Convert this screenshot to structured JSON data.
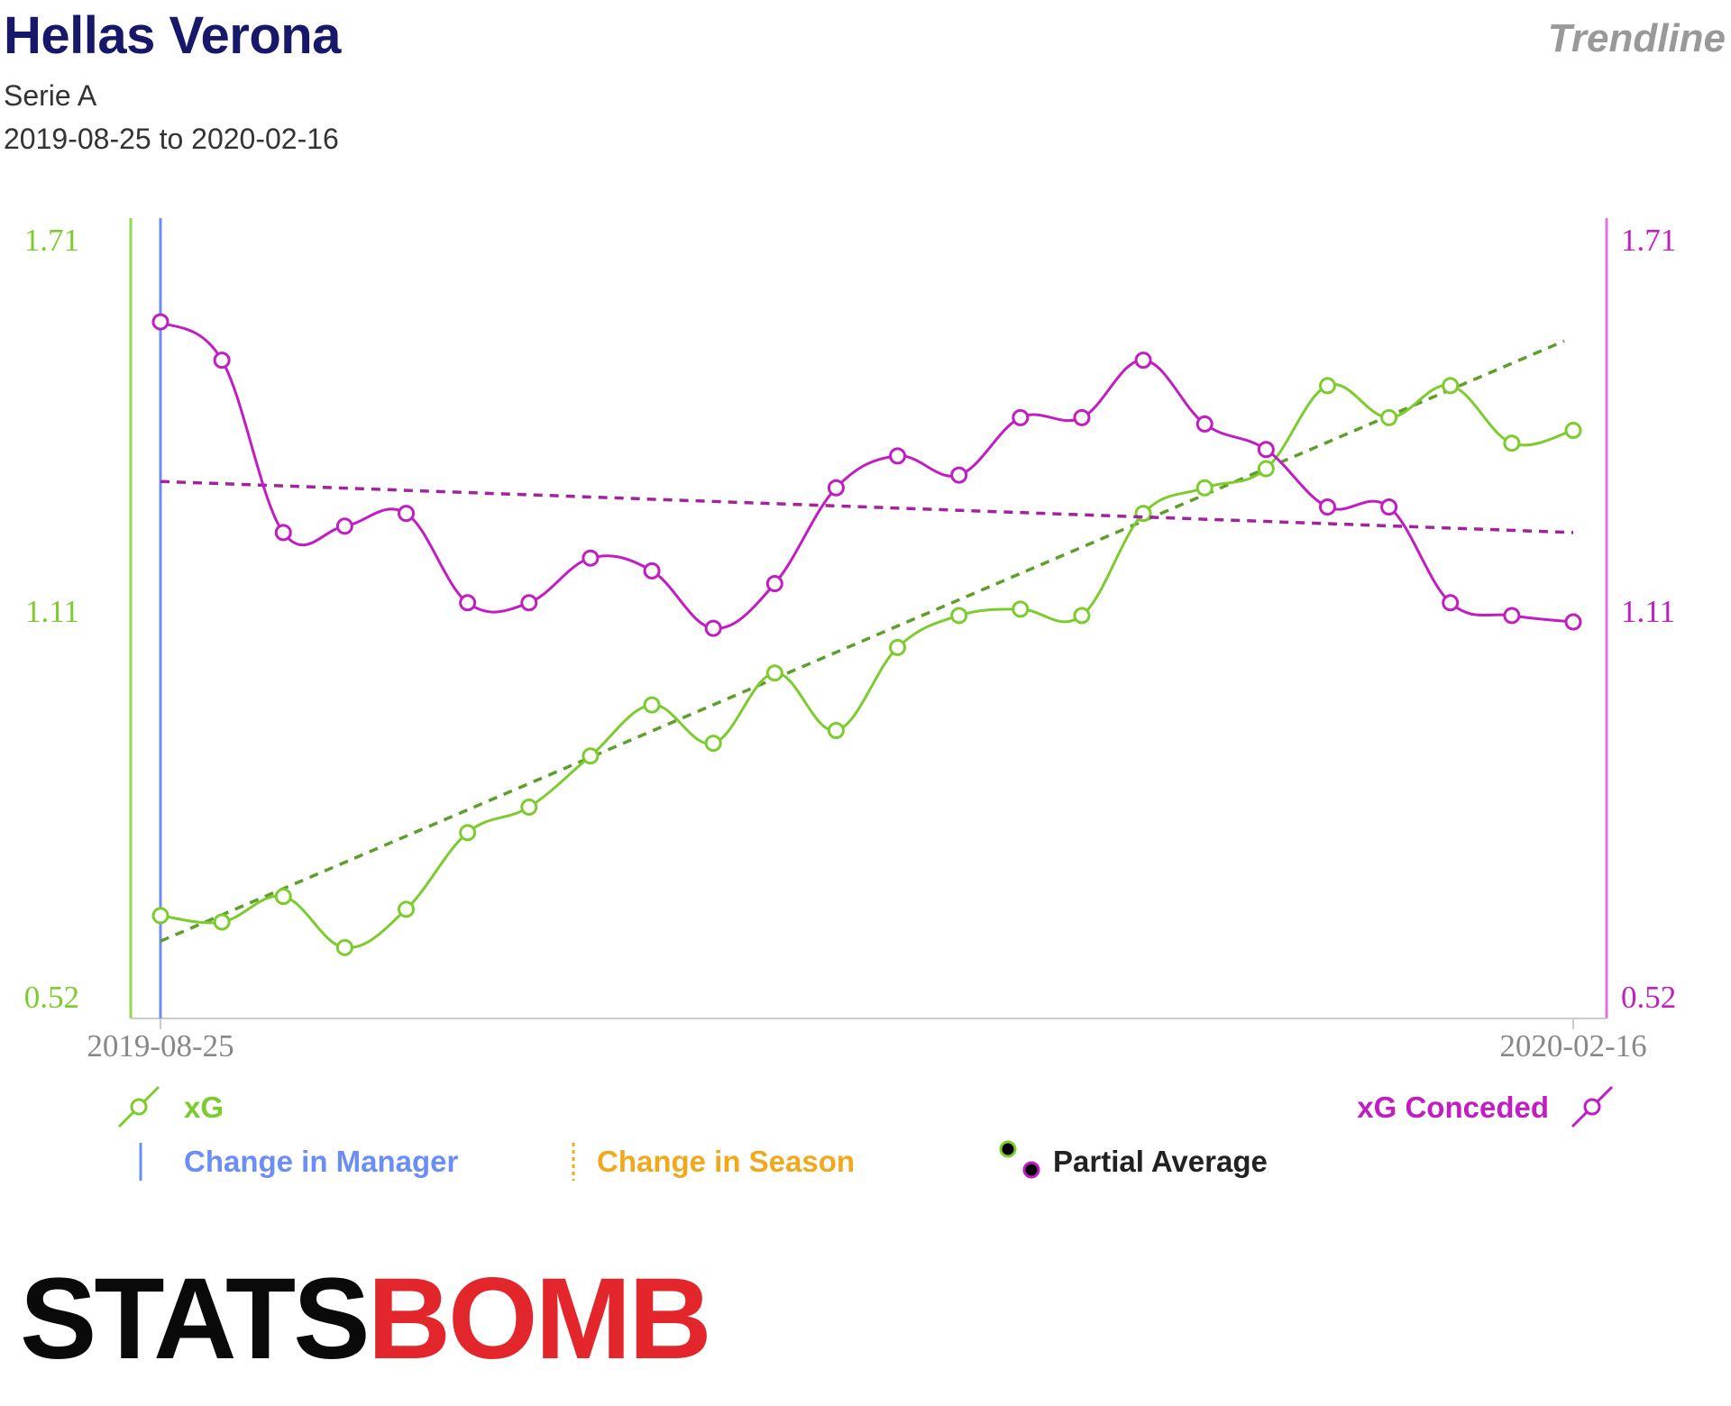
{
  "header": {
    "title": "Hellas Verona",
    "league": "Serie A",
    "date_range": "2019-08-25 to 2020-02-16",
    "chart_type_label": "Trendline"
  },
  "colors": {
    "xg": "#7ccc2e",
    "xg_axis": "#8fd94f",
    "xg_trend": "#5e9e2a",
    "conceded": "#c21dc2",
    "conceded_axis": "#e070e0",
    "conceded_trend": "#a3239e",
    "manager": "#6b8ef5",
    "season": "#f0a81c",
    "axis_gray": "#cccccc",
    "tick_gray": "#888888",
    "logo_black": "#0a0a0a",
    "logo_red": "#e3262b"
  },
  "chart_data": {
    "type": "line",
    "x_ticks": [
      "2019-08-25",
      "2020-02-16"
    ],
    "y_left_ticks": [
      "1.71",
      "1.11",
      "0.52"
    ],
    "y_right_ticks": [
      "1.71",
      "1.11",
      "0.52"
    ],
    "ylim": [
      0.52,
      1.71
    ],
    "series": [
      {
        "name": "xG",
        "axis": "left",
        "values": [
          0.65,
          0.64,
          0.68,
          0.6,
          0.66,
          0.78,
          0.82,
          0.9,
          0.98,
          0.92,
          1.03,
          0.94,
          1.07,
          1.12,
          1.13,
          1.12,
          1.28,
          1.32,
          1.35,
          1.48,
          1.43,
          1.48,
          1.39,
          1.41
        ],
        "trend": {
          "start": 0.61,
          "end": 1.55
        }
      },
      {
        "name": "xG Conceded",
        "axis": "right",
        "values": [
          1.58,
          1.52,
          1.25,
          1.26,
          1.28,
          1.14,
          1.14,
          1.21,
          1.19,
          1.1,
          1.17,
          1.32,
          1.37,
          1.34,
          1.43,
          1.43,
          1.52,
          1.42,
          1.38,
          1.29,
          1.29,
          1.14,
          1.12,
          1.11
        ],
        "trend": {
          "start": 1.33,
          "end": 1.25
        }
      }
    ],
    "manager_change_index": 0
  },
  "legend": {
    "xg": "xG",
    "xg_conceded": "xG Conceded",
    "manager": "Change in Manager",
    "season": "Change in Season",
    "partial": "Partial Average"
  },
  "logo": {
    "stats": "STATS",
    "bomb": "BOMB"
  }
}
